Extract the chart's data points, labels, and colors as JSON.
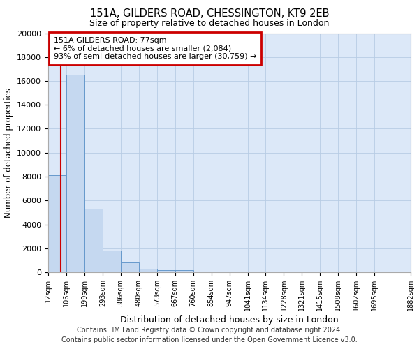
{
  "title1": "151A, GILDERS ROAD, CHESSINGTON, KT9 2EB",
  "title2": "Size of property relative to detached houses in London",
  "xlabel": "Distribution of detached houses by size in London",
  "ylabel": "Number of detached properties",
  "bar_color": "#c5d8f0",
  "bar_edge_color": "#6699cc",
  "bar_heights": [
    8100,
    16500,
    5300,
    1800,
    800,
    300,
    150,
    150,
    0,
    0,
    0,
    0,
    0,
    0,
    0,
    0,
    0,
    0,
    0
  ],
  "bin_edges": [
    12,
    106,
    199,
    293,
    386,
    480,
    573,
    667,
    760,
    854,
    947,
    1041,
    1134,
    1228,
    1321,
    1415,
    1508,
    1602,
    1695,
    1882
  ],
  "x_tick_labels": [
    "12sqm",
    "106sqm",
    "199sqm",
    "293sqm",
    "386sqm",
    "480sqm",
    "573sqm",
    "667sqm",
    "760sqm",
    "854sqm",
    "947sqm",
    "1041sqm",
    "1134sqm",
    "1228sqm",
    "1321sqm",
    "1415sqm",
    "1508sqm",
    "1602sqm",
    "1695sqm",
    "1882sqm"
  ],
  "ylim": [
    0,
    20000
  ],
  "yticks": [
    0,
    2000,
    4000,
    6000,
    8000,
    10000,
    12000,
    14000,
    16000,
    18000,
    20000
  ],
  "red_line_x": 77,
  "annotation_line1": "151A GILDERS ROAD: 77sqm",
  "annotation_line2": "← 6% of detached houses are smaller (2,084)",
  "annotation_line3": "93% of semi-detached houses are larger (30,759) →",
  "annotation_box_color": "#ffffff",
  "annotation_box_edge": "#cc0000",
  "footer_line1": "Contains HM Land Registry data © Crown copyright and database right 2024.",
  "footer_line2": "Contains public sector information licensed under the Open Government Licence v3.0.",
  "bg_color": "#dce8f8",
  "grid_color": "#b8cce4"
}
